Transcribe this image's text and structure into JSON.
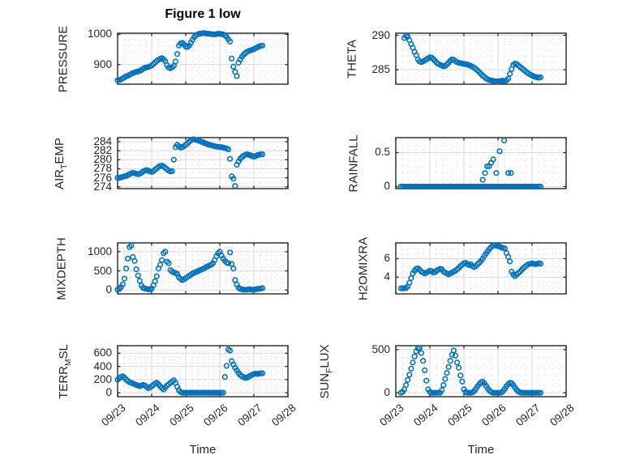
{
  "figure": {
    "title": "Figure 1 low",
    "background": "#ffffff",
    "marker_color": "#0072BD",
    "axis_color": "#262626",
    "grid_color": "#d9d9d9",
    "minor_grid_color": "#d0d0d0",
    "marker_style": "open-circle"
  },
  "x_axis": {
    "label": "Time",
    "xlim": [
      0,
      5
    ],
    "tick_positions": [
      0,
      1,
      2,
      3,
      4,
      5
    ],
    "tick_labels": [
      "09/23",
      "09/24",
      "09/25",
      "09/26",
      "09/27",
      "09/28"
    ],
    "minor_step": 0.2,
    "units": "days since 09/23"
  },
  "chart_data": [
    {
      "name": "pressure",
      "type": "scatter",
      "col": 0,
      "row": 0,
      "ylabel_text": "PRESSURE",
      "ylabel_parts": [
        {
          "text": "PRESSURE"
        }
      ],
      "ylim": [
        835,
        1004
      ],
      "yticks": [
        900,
        1000
      ],
      "ytick_labels": [
        "900",
        "1000"
      ],
      "yminor_step": 20,
      "series": {
        "t0": 0,
        "dt": 0.05,
        "values": [
          848,
          849,
          851,
          854,
          858,
          861,
          863,
          866,
          869,
          872,
          874,
          876,
          877,
          879,
          882,
          886,
          889,
          891,
          892,
          894,
          897,
          902,
          907,
          912,
          916,
          919,
          921,
          917,
          911,
          898,
          890,
          888,
          891,
          896,
          910,
          935,
          963,
          970,
          972,
          967,
          960,
          958,
          963,
          972,
          982,
          991,
          997,
          1000,
          1002,
          1003,
          1004,
          1004,
          1003,
          1002,
          1002,
          1001,
          1000,
          1000,
          1001,
          1002,
          1002,
          1001,
          1000,
          997,
          992,
          984,
          976,
          920,
          893,
          876,
          862,
          906,
          917,
          926,
          933,
          938,
          942,
          945,
          947,
          949,
          951,
          954,
          957,
          960,
          962,
          963
        ]
      }
    },
    {
      "name": "theta",
      "type": "scatter",
      "col": 1,
      "row": 0,
      "ylabel_text": "THETA",
      "ylabel_parts": [
        {
          "text": "THETA"
        }
      ],
      "ylim": [
        282.9,
        290.3
      ],
      "yticks": [
        285,
        290
      ],
      "ytick_labels": [
        "285",
        "290"
      ],
      "yminor_step": 1,
      "series": {
        "t0": 0.25,
        "dt": 0.05,
        "values": [
          289.6,
          289.9,
          289.8,
          289.3,
          288.7,
          288.2,
          287.6,
          287.1,
          286.5,
          286.2,
          286.1,
          286.2,
          286.35,
          286.5,
          286.65,
          286.8,
          286.75,
          286.55,
          286.3,
          286.0,
          285.85,
          285.7,
          285.6,
          285.5,
          285.55,
          285.75,
          286.0,
          286.3,
          286.5,
          286.45,
          286.25,
          286.1,
          286.0,
          285.95,
          285.9,
          285.85,
          285.8,
          285.75,
          285.65,
          285.55,
          285.45,
          285.3,
          285.1,
          284.9,
          284.65,
          284.4,
          284.15,
          283.95,
          283.75,
          283.6,
          283.5,
          283.45,
          283.4,
          283.35,
          283.3,
          283.3,
          283.35,
          283.4,
          283.4,
          283.35,
          283.45,
          283.7,
          284.4,
          285.1,
          285.7,
          285.9,
          285.8,
          285.6,
          285.4,
          285.2,
          285.0,
          284.8,
          284.6,
          284.45,
          284.3,
          284.15,
          284.05,
          283.95,
          283.9,
          283.85,
          283.9
        ]
      }
    },
    {
      "name": "air_temp",
      "type": "scatter",
      "col": 0,
      "row": 1,
      "ylabel_text": "AIR_TEMP",
      "ylabel_parts": [
        {
          "text": "AIR"
        },
        {
          "text": "T",
          "sub": true
        },
        {
          "text": "EMP"
        }
      ],
      "ylim": [
        273.6,
        284.9
      ],
      "yticks": [
        274,
        276,
        278,
        280,
        282,
        284
      ],
      "ytick_labels": [
        "274",
        "276",
        "278",
        "280",
        "282",
        "284"
      ],
      "yminor_step": 1,
      "series": {
        "t0": 0,
        "dt": 0.05,
        "values": [
          276.0,
          276.0,
          276.1,
          276.2,
          276.3,
          276.4,
          276.6,
          276.8,
          277.0,
          277.1,
          277.0,
          276.9,
          276.8,
          276.9,
          277.1,
          277.4,
          277.6,
          277.7,
          277.6,
          277.4,
          277.3,
          277.5,
          277.8,
          278.1,
          278.4,
          278.6,
          278.7,
          278.5,
          278.2,
          277.9,
          277.6,
          277.4,
          277.5,
          280.0,
          282.8,
          283.3,
          283.0,
          282.7,
          282.8,
          283.0,
          283.3,
          283.6,
          284.0,
          284.3,
          284.5,
          284.5,
          284.4,
          284.3,
          284.2,
          284.0,
          283.9,
          283.7,
          283.6,
          283.4,
          283.3,
          283.2,
          283.1,
          283.0,
          282.9,
          282.9,
          282.8,
          282.8,
          282.7,
          282.6,
          282.5,
          282.3,
          280.2,
          276.3,
          275.8,
          274.2,
          278.9,
          279.6,
          280.2,
          280.6,
          280.9,
          281.1,
          281.2,
          281.1,
          281.0,
          280.8,
          280.7,
          280.8,
          281.0,
          281.1,
          281.2,
          281.2
        ]
      }
    },
    {
      "name": "rainfall",
      "type": "scatter",
      "col": 1,
      "row": 1,
      "ylabel_text": "RAINFALL",
      "ylabel_parts": [
        {
          "text": "RAINFALL"
        }
      ],
      "ylim": [
        -0.03,
        0.72
      ],
      "yticks": [
        0,
        0.5
      ],
      "ytick_labels": [
        "0",
        "0.5"
      ],
      "yminor_step": 0.1,
      "series": {
        "t0": 0.15,
        "dt": 0.05,
        "values": [
          0,
          0,
          0,
          0,
          0,
          0,
          0,
          0,
          0,
          0,
          0,
          0,
          0,
          0,
          0,
          0,
          0,
          0,
          0,
          0,
          0,
          0,
          0,
          0,
          0,
          0,
          0,
          0,
          0,
          0,
          0,
          0,
          0,
          0,
          0,
          0,
          0,
          0,
          0,
          0,
          0,
          0,
          0,
          0,
          0,
          0,
          0,
          0,
          0,
          0,
          0,
          0,
          0,
          0,
          0,
          0,
          0,
          0,
          0,
          0,
          0,
          0,
          0,
          0,
          0,
          0,
          0,
          0,
          0,
          0,
          0,
          0,
          0,
          0,
          0,
          0,
          0,
          0,
          0,
          0,
          0,
          0,
          0
        ]
      },
      "extra_points": [
        [
          2.55,
          0.1
        ],
        [
          2.62,
          0.2
        ],
        [
          2.68,
          0.3
        ],
        [
          2.74,
          0.3
        ],
        [
          2.8,
          0.35
        ],
        [
          2.86,
          0.4
        ],
        [
          2.95,
          0.2
        ],
        [
          3.05,
          0.52
        ],
        [
          3.18,
          0.68
        ],
        [
          3.3,
          0.2
        ],
        [
          3.38,
          0.2
        ]
      ]
    },
    {
      "name": "mixdepth",
      "type": "scatter",
      "col": 0,
      "row": 2,
      "ylabel_text": "MIXDEPTH",
      "ylabel_parts": [
        {
          "text": "MIXDEPTH"
        }
      ],
      "ylim": [
        -100,
        1230
      ],
      "yticks": [
        0,
        500,
        1000
      ],
      "ytick_labels": [
        "0",
        "500",
        "1000"
      ],
      "yminor_step": 100,
      "series": {
        "t0": 0,
        "dt": 0.05,
        "values": [
          10,
          30,
          80,
          150,
          300,
          560,
          820,
          1120,
          1160,
          860,
          760,
          540,
          380,
          240,
          120,
          60,
          40,
          30,
          20,
          20,
          40,
          120,
          230,
          360,
          560,
          660,
          780,
          960,
          1000,
          740,
          700,
          520,
          480,
          460,
          440,
          420,
          330,
          290,
          260,
          280,
          310,
          340,
          370,
          400,
          430,
          450,
          470,
          490,
          510,
          530,
          550,
          570,
          600,
          620,
          640,
          660,
          700,
          780,
          880,
          960,
          1000,
          900,
          820,
          760,
          720,
          700,
          980,
          680,
          560,
          260,
          140,
          60,
          30,
          20,
          10,
          10,
          10,
          20,
          20,
          10,
          10,
          20,
          30,
          30,
          40,
          50
        ]
      }
    },
    {
      "name": "h2omixra",
      "type": "scatter",
      "col": 1,
      "row": 2,
      "ylabel_text": "H2OMIXRA",
      "ylabel_parts": [
        {
          "text": "H2OMIXRA"
        }
      ],
      "ylim": [
        2.2,
        7.7
      ],
      "yticks": [
        4,
        6
      ],
      "ytick_labels": [
        "4",
        "6"
      ],
      "yminor_step": 0.5,
      "series": {
        "t0": 0.15,
        "dt": 0.05,
        "values": [
          2.8,
          2.8,
          2.8,
          2.85,
          3.0,
          3.4,
          3.9,
          4.4,
          4.7,
          4.9,
          4.95,
          4.8,
          4.6,
          4.5,
          4.4,
          4.5,
          4.6,
          4.7,
          4.65,
          4.5,
          4.55,
          4.7,
          4.8,
          4.9,
          4.85,
          4.6,
          4.5,
          4.4,
          4.3,
          4.4,
          4.5,
          4.6,
          4.7,
          4.85,
          5.0,
          5.2,
          5.35,
          5.5,
          5.55,
          5.4,
          5.3,
          5.4,
          5.2,
          5.1,
          5.2,
          5.4,
          5.55,
          5.75,
          6.0,
          6.3,
          6.55,
          6.8,
          7.05,
          7.25,
          7.4,
          7.45,
          7.4,
          7.35,
          7.3,
          7.2,
          7.15,
          7.1,
          6.6,
          6.2,
          5.7,
          4.6,
          4.3,
          4.1,
          4.3,
          4.45,
          4.6,
          4.8,
          5.0,
          5.15,
          5.3,
          5.4,
          5.45,
          5.5,
          5.45,
          5.4,
          5.45,
          5.5,
          5.45
        ]
      }
    },
    {
      "name": "terr_msl",
      "type": "scatter",
      "col": 0,
      "row": 3,
      "ylabel_text": "TERR_MSL",
      "ylabel_parts": [
        {
          "text": "TERR"
        },
        {
          "text": "M",
          "sub": true
        },
        {
          "text": "SL"
        }
      ],
      "ylim": [
        -60,
        715
      ],
      "yticks": [
        0,
        200,
        400,
        600
      ],
      "ytick_labels": [
        "0",
        "200",
        "400",
        "600"
      ],
      "yminor_step": 50,
      "series": {
        "t0": 0,
        "dt": 0.05,
        "values": [
          200,
          220,
          240,
          250,
          230,
          200,
          180,
          160,
          150,
          140,
          130,
          120,
          110,
          100,
          110,
          120,
          110,
          90,
          70,
          80,
          100,
          120,
          140,
          150,
          130,
          100,
          70,
          50,
          80,
          110,
          130,
          150,
          170,
          190,
          150,
          90,
          40,
          10,
          0,
          0,
          0,
          0,
          0,
          0,
          0,
          0,
          0,
          0,
          0,
          0,
          0,
          0,
          0,
          0,
          0,
          0,
          0,
          0,
          0,
          0,
          0,
          0,
          0,
          240,
          410,
          660,
          640,
          480,
          430,
          380,
          340,
          300,
          270,
          250,
          235,
          225,
          230,
          245,
          260,
          275,
          285,
          290,
          285,
          290,
          295,
          295
        ]
      }
    },
    {
      "name": "sun_flux",
      "type": "scatter",
      "col": 1,
      "row": 3,
      "ylabel_text": "SUN_FLUX",
      "ylabel_parts": [
        {
          "text": "SUN"
        },
        {
          "text": "F",
          "sub": true
        },
        {
          "text": "LUX"
        }
      ],
      "ylim": [
        -45,
        545
      ],
      "yticks": [
        0,
        500
      ],
      "ytick_labels": [
        "0",
        "500"
      ],
      "yminor_step": 100,
      "series": {
        "t0": 0.15,
        "dt": 0.05,
        "values": [
          0,
          10,
          40,
          90,
          150,
          210,
          280,
          350,
          420,
          480,
          515,
          520,
          460,
          370,
          260,
          140,
          40,
          10,
          0,
          0,
          0,
          0,
          0,
          0,
          30,
          90,
          160,
          230,
          300,
          370,
          440,
          490,
          430,
          350,
          290,
          200,
          130,
          40,
          10,
          0,
          0,
          0,
          5,
          20,
          45,
          75,
          100,
          120,
          130,
          110,
          80,
          50,
          25,
          10,
          0,
          0,
          0,
          0,
          0,
          5,
          20,
          45,
          75,
          100,
          115,
          110,
          90,
          60,
          35,
          15,
          5,
          0,
          0,
          0,
          0,
          0,
          0,
          0,
          0,
          0,
          0,
          0,
          0
        ]
      }
    }
  ]
}
